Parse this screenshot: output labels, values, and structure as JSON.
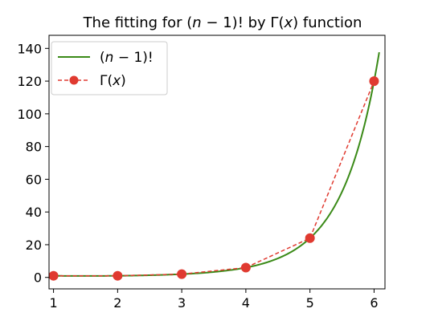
{
  "chart_data": {
    "type": "line",
    "title": "The fitting for (n − 1)!  by Γ(x) function",
    "title_parts": {
      "before": "The fitting for (",
      "var_n": "n",
      "mid1": " − 1)!  by Γ(",
      "var_x": "x",
      "after": ") function"
    },
    "xlabel": "",
    "ylabel": "",
    "xlim": [
      0.93,
      6.17
    ],
    "ylim": [
      -7,
      148
    ],
    "xticks": [
      1,
      2,
      3,
      4,
      5,
      6
    ],
    "yticks": [
      0,
      20,
      40,
      60,
      80,
      100,
      120,
      140
    ],
    "grid": false,
    "legend_position": "top-left",
    "series": [
      {
        "name": "(n − 1)!",
        "legend_parts": {
          "open": "(",
          "var": "n",
          "rest": " − 1)!"
        },
        "style": "solid-curve",
        "color": "#3a8a17",
        "x_range": [
          1,
          6.08
        ]
      },
      {
        "name": "Γ(x)",
        "legend_parts": {
          "open": "Γ(",
          "var": "x",
          "rest": ")"
        },
        "style": "dashed-markers",
        "color": "#e03a30",
        "x": [
          1,
          2,
          3,
          4,
          5,
          6
        ],
        "y": [
          1,
          1,
          2,
          6,
          24,
          120
        ]
      }
    ]
  }
}
